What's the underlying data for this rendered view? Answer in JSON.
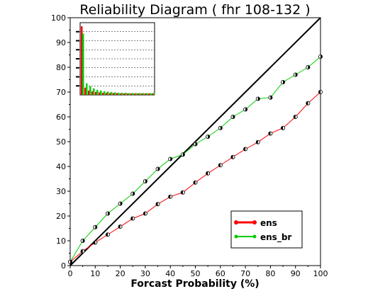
{
  "chart_data": {
    "type": "line",
    "title": "Reliability Diagram ( fhr 108-132 )",
    "xlabel": "Forcast Probability (%)",
    "ylabel": "",
    "xlim": [
      0,
      100
    ],
    "ylim": [
      0,
      100
    ],
    "xticks": [
      0,
      10,
      20,
      30,
      40,
      50,
      60,
      70,
      80,
      90,
      100
    ],
    "yticks": [
      0,
      10,
      20,
      30,
      40,
      50,
      60,
      70,
      80,
      90,
      100
    ],
    "diagonal": true,
    "legend_position": "bottom-right",
    "x": [
      0,
      5,
      10,
      15,
      20,
      25,
      30,
      35,
      40,
      45,
      50,
      55,
      60,
      65,
      70,
      75,
      80,
      85,
      90,
      95,
      100
    ],
    "series": [
      {
        "name": "ens",
        "color": "#ff0000",
        "values": [
          1.5,
          5.8,
          9.3,
          12.5,
          15.7,
          19.0,
          21.0,
          24.8,
          27.8,
          29.5,
          33.5,
          37.2,
          40.5,
          43.8,
          47.0,
          49.8,
          53.3,
          55.5,
          60.0,
          65.5,
          70.0
        ]
      },
      {
        "name": "ens_br",
        "color": "#00cc00",
        "values": [
          1.5,
          10.0,
          15.5,
          21.0,
          25.0,
          29.0,
          34.0,
          39.0,
          43.0,
          44.8,
          49.0,
          52.0,
          55.5,
          60.0,
          63.0,
          67.3,
          67.8,
          74.0,
          77.0,
          80.0,
          84.3
        ]
      }
    ],
    "inset": {
      "type": "bar",
      "description_sample_counts": "histogram of forecast counts",
      "ens_values": [
        0.95,
        0.1,
        0.06,
        0.05,
        0.04,
        0.035,
        0.03,
        0.03,
        0.025,
        0.025,
        0.025,
        0.02,
        0.02,
        0.02,
        0.02,
        0.02,
        0.02,
        0.02,
        0.02,
        0.02,
        0.02
      ],
      "ens_br_values": [
        0.85,
        0.16,
        0.12,
        0.09,
        0.07,
        0.06,
        0.05,
        0.045,
        0.04,
        0.035,
        0.03,
        0.03,
        0.03,
        0.025,
        0.025,
        0.025,
        0.025,
        0.025,
        0.025,
        0.025,
        0.03
      ]
    }
  }
}
